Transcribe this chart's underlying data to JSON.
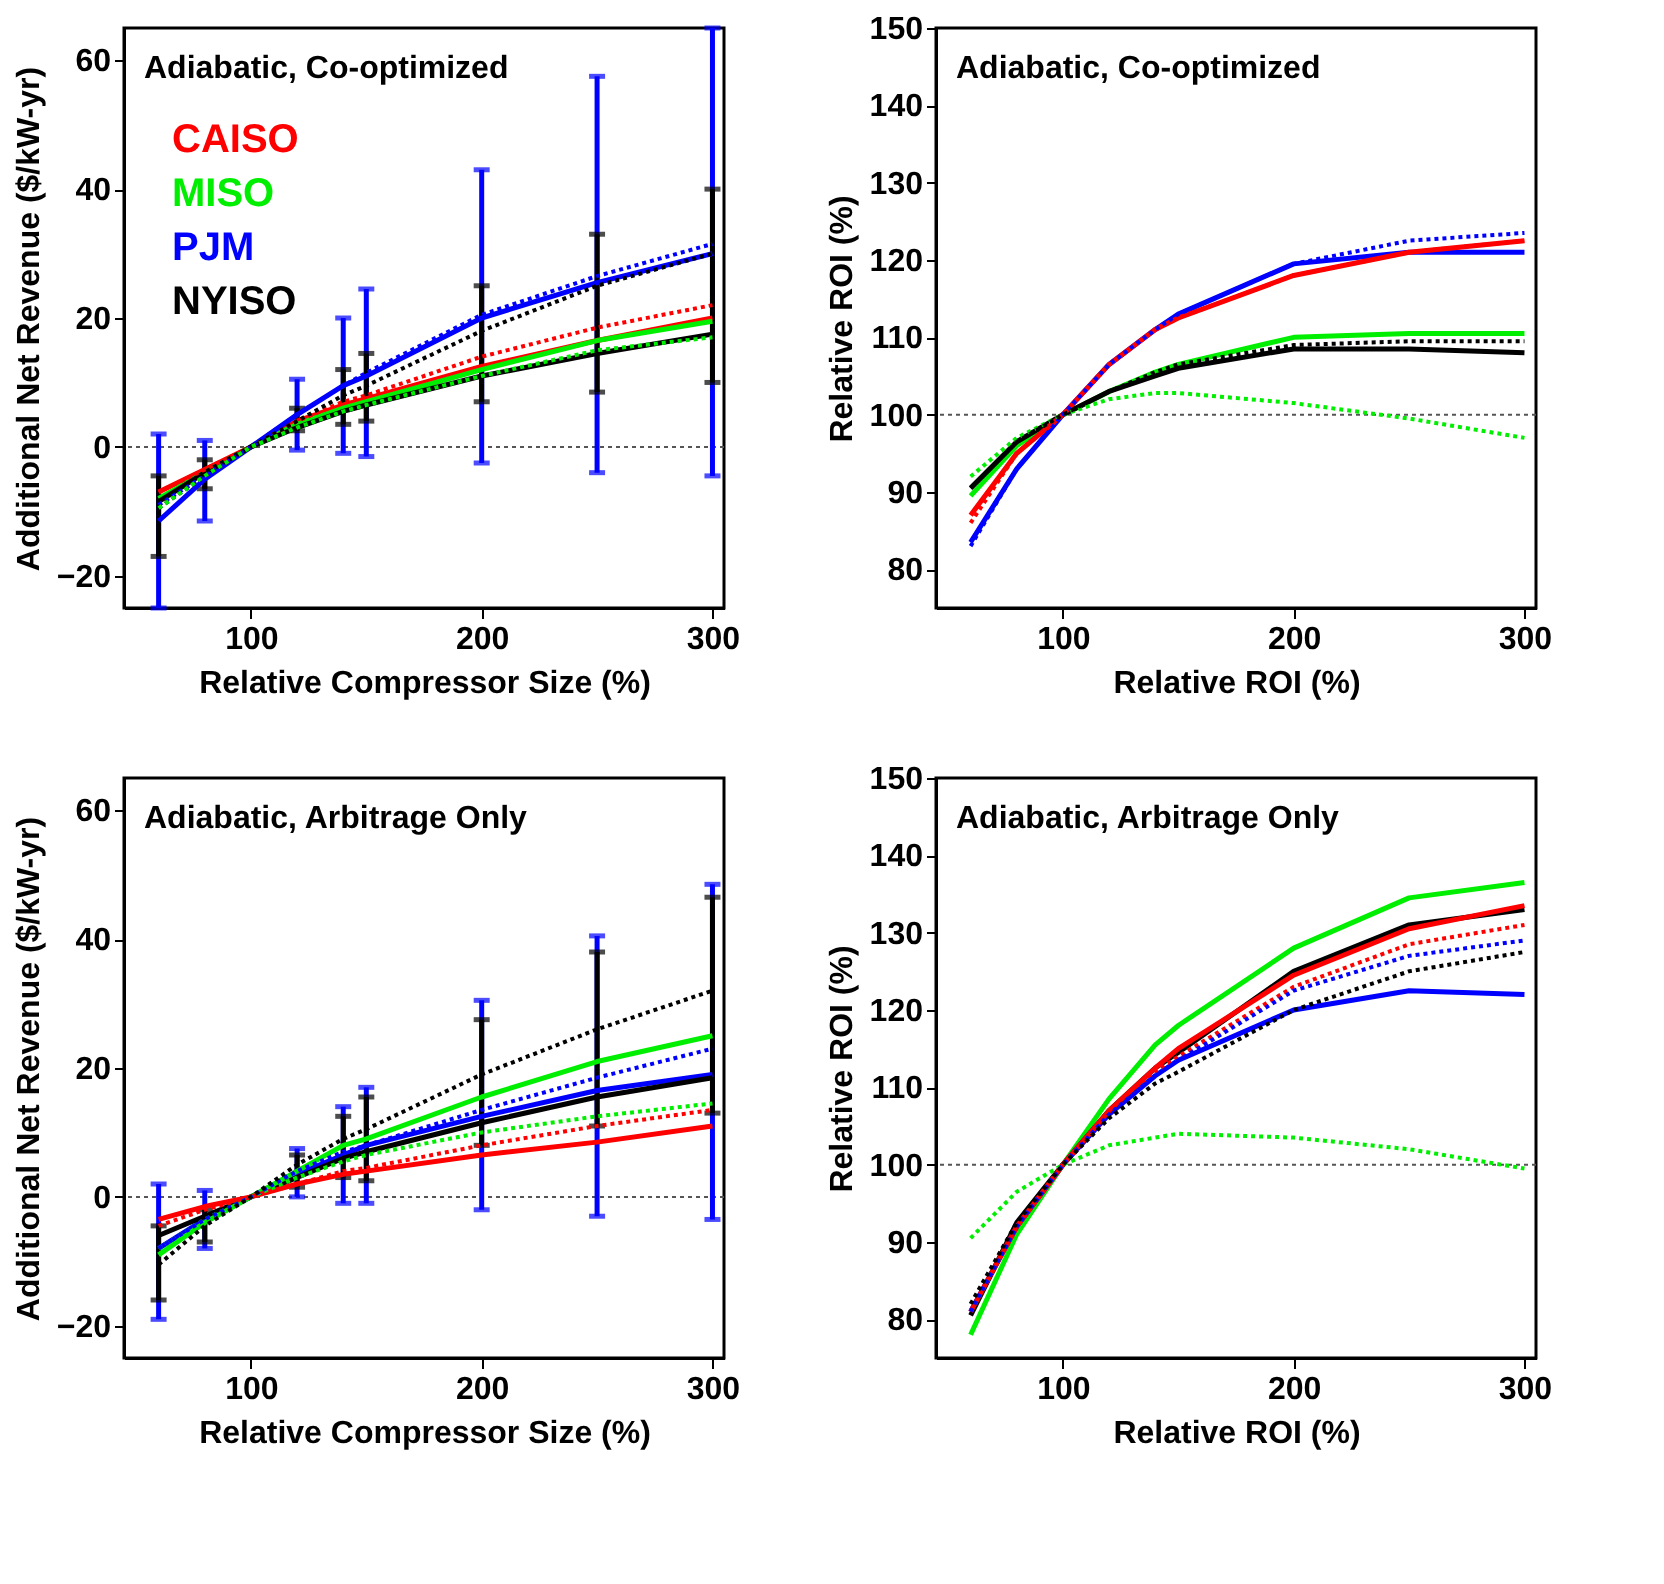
{
  "chart_data": [
    {
      "type": "line",
      "title": "Adiabatic, Co-optimized",
      "xlabel": "Relative Compressor Size (%)",
      "ylabel": "Additional Net Revenue ($/kW-yr)",
      "x": [
        60,
        80,
        100,
        120,
        140,
        150,
        200,
        250,
        300
      ],
      "xlim": [
        45,
        305
      ],
      "xticks": [
        100,
        200,
        300
      ],
      "ylim": [
        -25,
        65
      ],
      "yticks": [
        -20,
        0,
        20,
        40,
        60
      ],
      "legend": "top left",
      "ref_lines": [
        {
          "axis": "y",
          "value": 0,
          "color": "#555555",
          "line_style": "dotted"
        }
      ],
      "series": [
        {
          "name": "CAISO",
          "color": "#ff0000",
          "values": [
            -7,
            -3.5,
            0,
            4,
            6.5,
            7.5,
            12.5,
            16.5,
            20
          ]
        },
        {
          "name": "MISO",
          "color": "#00ee00",
          "values": [
            -8,
            -4,
            0,
            3.5,
            6,
            7,
            12,
            16.5,
            19.5
          ]
        },
        {
          "name": "PJM",
          "color": "#0000ff",
          "values": [
            -11.5,
            -5,
            0,
            5,
            9.5,
            11,
            20,
            25.5,
            30
          ],
          "errors": [
            [
              -25,
              2
            ],
            [
              -11.5,
              1
            ],
            null,
            [
              -0.5,
              10.5
            ],
            [
              -1,
              20
            ],
            [
              -1.5,
              24.5
            ],
            [
              -2.5,
              43
            ],
            [
              -4,
              57.5
            ],
            [
              -4.5,
              65
            ]
          ]
        },
        {
          "name": "NYISO",
          "color": "#000000",
          "values": [
            -8.5,
            -4,
            0,
            3,
            5.5,
            6.5,
            11,
            14.5,
            17.5
          ],
          "errors": [
            [
              -17,
              -4.5
            ],
            [
              -6.5,
              -2
            ],
            null,
            [
              2.5,
              6
            ],
            [
              3.5,
              12
            ],
            [
              4,
              14.5
            ],
            [
              7,
              25
            ],
            [
              8.5,
              33
            ],
            [
              10,
              40
            ]
          ]
        },
        {
          "color": "#ff0000",
          "line_style": "dotted",
          "values": [
            -7,
            -3.5,
            0,
            4,
            7,
            8,
            14,
            18.5,
            22
          ]
        },
        {
          "color": "#0000ff",
          "line_style": "dotted",
          "values": [
            -9,
            -4.5,
            0,
            5,
            9.5,
            11.5,
            20.5,
            26.5,
            31.5
          ]
        },
        {
          "color": "#000000",
          "line_style": "dotted",
          "values": [
            -9.5,
            -4.5,
            0,
            4,
            8,
            9.5,
            18,
            25,
            30
          ]
        },
        {
          "color": "#00ee00",
          "line_style": "dotted",
          "values": [
            -9.5,
            -4.5,
            0,
            3,
            5.5,
            6.5,
            11,
            15,
            17
          ]
        }
      ]
    },
    {
      "type": "line",
      "title": "Adiabatic, Co-optimized",
      "xlabel": "Relative ROI (%)",
      "ylabel": "Relative ROI (%)",
      "x": [
        60,
        80,
        100,
        120,
        140,
        150,
        200,
        250,
        300
      ],
      "xlim": [
        45,
        305
      ],
      "xticks": [
        100,
        200,
        300
      ],
      "ylim": [
        75,
        150
      ],
      "yticks": [
        80,
        90,
        100,
        110,
        120,
        130,
        140,
        150
      ],
      "ref_lines": [
        {
          "axis": "y",
          "value": 100,
          "color": "#555555",
          "line_style": "dotted"
        }
      ],
      "series": [
        {
          "color": "#ff0000",
          "line_style": "dotted",
          "values": [
            86,
            95,
            100,
            106.5,
            111,
            112.5,
            118,
            121,
            122.5
          ]
        },
        {
          "color": "#00ee00",
          "line_style": "dotted",
          "values": [
            92,
            97,
            100,
            102,
            102.8,
            102.8,
            101.5,
            99.5,
            97
          ]
        },
        {
          "color": "#0000ff",
          "line_style": "dotted",
          "values": [
            83,
            93,
            100,
            106.5,
            111,
            113,
            119.5,
            122.5,
            123.5
          ]
        },
        {
          "color": "#000000",
          "line_style": "dotted",
          "values": [
            90.5,
            96.5,
            100,
            103,
            105.5,
            106.5,
            109,
            109.5,
            109.5
          ]
        },
        {
          "color": "#00ee00",
          "values": [
            89.5,
            96,
            100,
            103,
            105.5,
            106.5,
            110,
            110.5,
            110.5
          ]
        },
        {
          "color": "#000000",
          "values": [
            90.5,
            96.5,
            100,
            103,
            105,
            106,
            108.5,
            108.5,
            108
          ]
        },
        {
          "color": "#0000ff",
          "values": [
            83.5,
            93,
            100,
            106.5,
            111,
            113,
            119.5,
            121,
            121
          ]
        },
        {
          "color": "#ff0000",
          "values": [
            87,
            95,
            100,
            106.5,
            111,
            112.5,
            118,
            121,
            122.5
          ]
        }
      ]
    },
    {
      "type": "line",
      "title": "Adiabatic, Arbitrage Only",
      "xlabel": "Relative Compressor Size (%)",
      "ylabel": "Additional Net Revenue ($/kW-yr)",
      "x": [
        60,
        80,
        100,
        120,
        140,
        150,
        200,
        250,
        300
      ],
      "xlim": [
        45,
        305
      ],
      "xticks": [
        100,
        200,
        300
      ],
      "ylim": [
        -25,
        65
      ],
      "yticks": [
        -20,
        0,
        20,
        40,
        60
      ],
      "ref_lines": [
        {
          "axis": "y",
          "value": 0,
          "color": "#555555",
          "line_style": "dotted"
        }
      ],
      "series": [
        {
          "color": "#ff0000",
          "line_style": "dotted",
          "values": [
            -4.5,
            -2,
            0,
            2,
            4,
            4.5,
            8,
            11,
            13.5
          ]
        },
        {
          "color": "#00ee00",
          "line_style": "dotted",
          "values": [
            -8,
            -3.5,
            0,
            3,
            5.5,
            6.5,
            10,
            12.5,
            14.5
          ]
        },
        {
          "color": "#0000ff",
          "line_style": "dotted",
          "values": [
            -8,
            -3.5,
            0,
            4,
            7,
            8,
            13.5,
            18.5,
            23
          ]
        },
        {
          "color": "#000000",
          "line_style": "dotted",
          "values": [
            -10.5,
            -4.5,
            0,
            5,
            9,
            10.5,
            19,
            26,
            32
          ]
        },
        {
          "color": "#0000ff",
          "values": [
            -8,
            -3.5,
            0,
            3.5,
            6.5,
            8,
            12.5,
            16.5,
            19
          ],
          "errors": [
            [
              -19,
              2
            ],
            [
              -8,
              1
            ],
            null,
            [
              0,
              7.5
            ],
            [
              -1,
              14
            ],
            [
              -1,
              17
            ],
            [
              -2,
              30.5
            ],
            [
              -3,
              40.5
            ],
            [
              -3.5,
              48.5
            ]
          ]
        },
        {
          "color": "#000000",
          "values": [
            -6,
            -3,
            0,
            3,
            6,
            7,
            11.5,
            15.5,
            18.5
          ],
          "errors": [
            [
              -16,
              -4.5
            ],
            [
              -7,
              -2
            ],
            null,
            [
              1.5,
              6.5
            ],
            [
              3,
              12.5
            ],
            [
              2.5,
              15.5
            ],
            [
              8,
              27.5
            ],
            [
              11,
              38
            ],
            [
              13,
              46.5
            ]
          ]
        },
        {
          "color": "#00ee00",
          "values": [
            -9,
            -4,
            0,
            4,
            8,
            9,
            15.5,
            21,
            25
          ]
        },
        {
          "color": "#ff0000",
          "values": [
            -3.5,
            -1.5,
            0,
            2,
            3.5,
            4,
            6.5,
            8.5,
            11
          ]
        }
      ]
    },
    {
      "type": "line",
      "title": "Adiabatic, Arbitrage Only",
      "xlabel": "Relative ROI (%)",
      "ylabel": "Relative ROI (%)",
      "x": [
        60,
        80,
        100,
        120,
        140,
        150,
        200,
        250,
        300
      ],
      "xlim": [
        45,
        305
      ],
      "xticks": [
        100,
        200,
        300
      ],
      "ylim": [
        75,
        150
      ],
      "yticks": [
        80,
        90,
        100,
        110,
        120,
        130,
        140,
        150
      ],
      "ref_lines": [
        {
          "axis": "y",
          "value": 100,
          "color": "#555555",
          "line_style": "dotted"
        }
      ],
      "series": [
        {
          "color": "#ff0000",
          "line_style": "dotted",
          "values": [
            81,
            92,
            100,
            106.5,
            112,
            114,
            123,
            128.5,
            131
          ]
        },
        {
          "color": "#00ee00",
          "line_style": "dotted",
          "values": [
            90.5,
            96.5,
            100,
            102.5,
            103.5,
            104,
            103.5,
            102,
            99.5
          ]
        },
        {
          "color": "#0000ff",
          "line_style": "dotted",
          "values": [
            81,
            92,
            100,
            106.5,
            111.5,
            113.5,
            122.5,
            127,
            129
          ]
        },
        {
          "color": "#000000",
          "line_style": "dotted",
          "values": [
            82,
            92.5,
            100,
            106,
            110.5,
            112,
            120,
            125,
            127.5
          ]
        },
        {
          "color": "#00ee00",
          "values": [
            78,
            91,
            100,
            108.5,
            115.5,
            118,
            128,
            134.5,
            136.5
          ]
        },
        {
          "color": "#0000ff",
          "values": [
            81,
            92,
            100,
            106.5,
            111.5,
            113.5,
            120,
            122.5,
            122
          ]
        },
        {
          "color": "#000000",
          "values": [
            80.5,
            92.5,
            100,
            107,
            112.5,
            114.5,
            125,
            131,
            133
          ]
        },
        {
          "color": "#ff0000",
          "values": [
            81,
            92,
            100,
            107,
            112.5,
            115,
            124.5,
            130.5,
            133.5
          ]
        }
      ]
    }
  ]
}
